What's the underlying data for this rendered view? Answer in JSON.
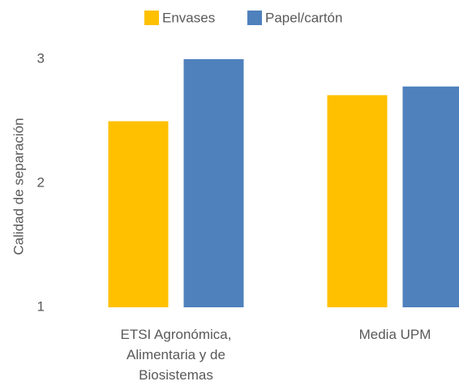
{
  "chart_data": {
    "type": "bar",
    "categories": [
      "ETSI Agronómica, Alimentaria y de Biosistemas",
      "Media UPM"
    ],
    "series": [
      {
        "name": "Envases",
        "color": "#FFC000",
        "values": [
          2.5,
          2.71
        ]
      },
      {
        "name": "Papel/cartón",
        "color": "#4F81BD",
        "values": [
          3.0,
          2.78
        ]
      }
    ],
    "y_label": "Calidad de separación",
    "ylim": [
      1,
      3
    ],
    "yticks": [
      1,
      2,
      3
    ],
    "grid": false,
    "legend": "top"
  }
}
